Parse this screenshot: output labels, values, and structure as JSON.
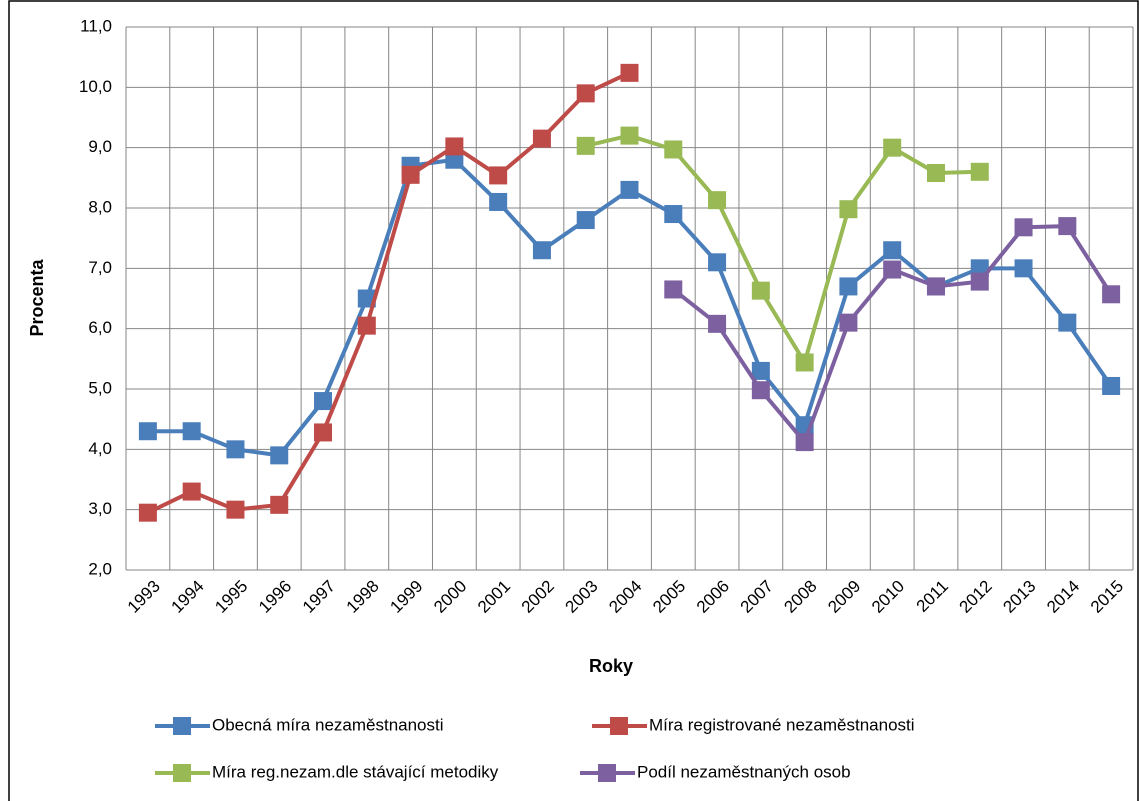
{
  "chart_data": {
    "type": "line",
    "xlabel": "Roky",
    "ylabel": "Procenta",
    "categories": [
      "1993",
      "1994",
      "1995",
      "1996",
      "1997",
      "1998",
      "1999",
      "2000",
      "2001",
      "2002",
      "2003",
      "2004",
      "2005",
      "2006",
      "2007",
      "2008",
      "2009",
      "2010",
      "2011",
      "2012",
      "2013",
      "2014",
      "2015"
    ],
    "ylim": [
      2,
      11
    ],
    "yticks": [
      {
        "value": 2,
        "label": "2,0"
      },
      {
        "value": 3,
        "label": "3,0"
      },
      {
        "value": 4,
        "label": "4,0"
      },
      {
        "value": 5,
        "label": "5,0"
      },
      {
        "value": 6,
        "label": "6,0"
      },
      {
        "value": 7,
        "label": "7,0"
      },
      {
        "value": 8,
        "label": "8,0"
      },
      {
        "value": 9,
        "label": "9,0"
      },
      {
        "value": 10,
        "label": "10,0"
      },
      {
        "value": 11,
        "label": "11,0"
      }
    ],
    "grid": true,
    "legend": "bottom",
    "series": [
      {
        "name": "Obecná míra nezaměstnanosti",
        "color": "#4a7ebb",
        "values": [
          4.3,
          4.3,
          4.0,
          3.9,
          4.8,
          6.5,
          8.7,
          8.8,
          8.1,
          7.3,
          7.8,
          8.3,
          7.9,
          7.1,
          5.3,
          4.4,
          6.7,
          7.3,
          6.7,
          7.0,
          7.0,
          6.1,
          5.05
        ]
      },
      {
        "name": "Míra registrované nezaměstnanosti",
        "color": "#be4b48",
        "values": [
          2.95,
          3.3,
          3.0,
          3.08,
          4.28,
          6.05,
          8.55,
          9.02,
          8.54,
          9.15,
          9.9,
          10.24,
          null,
          null,
          null,
          null,
          null,
          null,
          null,
          null,
          null,
          null,
          null
        ]
      },
      {
        "name": "Míra reg.nezam.dle stávající metodiky",
        "color": "#98b954",
        "values": [
          null,
          null,
          null,
          null,
          null,
          null,
          null,
          null,
          null,
          null,
          9.03,
          9.2,
          8.97,
          8.13,
          6.63,
          5.44,
          7.98,
          9.0,
          8.58,
          8.6,
          null,
          null,
          null
        ]
      },
      {
        "name": "Podíl nezaměstnaných osob",
        "color": "#7d60a0",
        "values": [
          null,
          null,
          null,
          null,
          null,
          null,
          null,
          null,
          null,
          null,
          null,
          null,
          6.65,
          6.08,
          4.98,
          4.12,
          6.1,
          6.98,
          6.7,
          6.78,
          7.68,
          7.7,
          6.57
        ]
      }
    ]
  }
}
